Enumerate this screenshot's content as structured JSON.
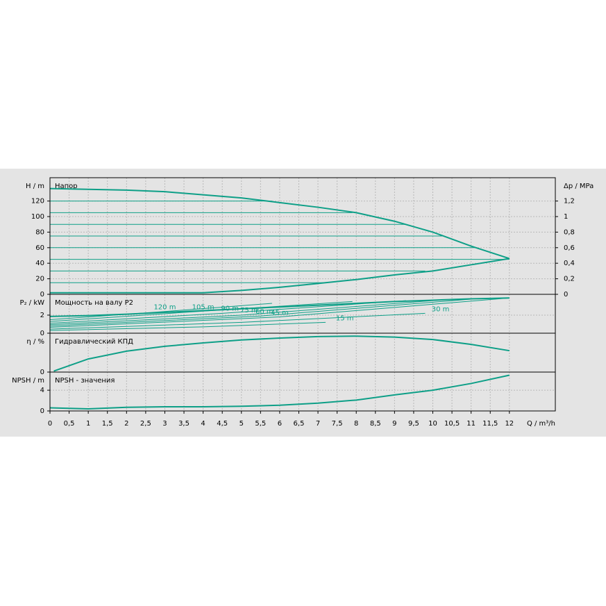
{
  "chart_data": [
    {
      "type": "line",
      "title": "Напор",
      "ylabel": "H / m",
      "y2label": "Δp / MPa",
      "ylim": [
        0,
        150
      ],
      "yticks": [
        0,
        20,
        40,
        60,
        80,
        100,
        120
      ],
      "y2lim": [
        0,
        1.5
      ],
      "y2ticks": [
        0,
        {
          "value": 0.2,
          "label": "0,2"
        },
        {
          "value": 0.4,
          "label": "0,4"
        },
        {
          "value": 0.6,
          "label": "0,6"
        },
        {
          "value": 0.8,
          "label": "0,8"
        },
        1,
        {
          "value": 1.2,
          "label": "1,2"
        }
      ],
      "xlim": [
        0,
        13.2
      ],
      "grid": true,
      "series": [
        {
          "color": "#0d9f87",
          "x": [
            0,
            1,
            2,
            3,
            4,
            5,
            6,
            7,
            8,
            9,
            10,
            11,
            12
          ],
          "values": [
            136,
            135,
            134,
            132,
            128,
            124,
            118,
            112,
            105,
            94,
            80,
            62,
            46
          ]
        },
        {
          "color": "#0d9f87",
          "x": [
            0,
            4,
            5,
            6,
            7,
            8,
            9,
            10,
            11,
            12
          ],
          "values": [
            2,
            2,
            5,
            9,
            14,
            19,
            25,
            30,
            38,
            46
          ]
        },
        {
          "color": "#0d9f87",
          "x": [
            0,
            7.2
          ],
          "values": [
            15,
            15
          ]
        },
        {
          "color": "#0d9f87",
          "x": [
            0,
            9.8
          ],
          "values": [
            30,
            30
          ]
        },
        {
          "color": "#0d9f87",
          "x": [
            0,
            12
          ],
          "values": [
            45,
            45
          ]
        },
        {
          "color": "#0d9f87",
          "x": [
            0,
            11.1
          ],
          "values": [
            60,
            60
          ]
        },
        {
          "color": "#0d9f87",
          "x": [
            0,
            10.3
          ],
          "values": [
            75,
            75
          ]
        },
        {
          "color": "#0d9f87",
          "x": [
            0,
            9.3
          ],
          "values": [
            90,
            90
          ]
        },
        {
          "color": "#0d9f87",
          "x": [
            0,
            7.9
          ],
          "values": [
            105,
            105
          ]
        },
        {
          "color": "#0d9f87",
          "x": [
            0,
            5.8
          ],
          "values": [
            120,
            120
          ]
        }
      ]
    },
    {
      "type": "line",
      "title": "Мощность на валу P2",
      "ylabel": "P₂ / kW",
      "ylim": [
        0,
        4.3
      ],
      "yticks": [
        0,
        2
      ],
      "xlim": [
        0,
        13.2
      ],
      "grid": true,
      "series": [
        {
          "color": "#0d9f87",
          "x": [
            0,
            1,
            2,
            3,
            4,
            5,
            6,
            7,
            8,
            9,
            10,
            11,
            12
          ],
          "values": [
            1.85,
            1.95,
            2.1,
            2.3,
            2.5,
            2.7,
            2.9,
            3.1,
            3.3,
            3.5,
            3.65,
            3.8,
            3.9
          ]
        },
        {
          "name": "120 m",
          "color": "#0d9f87",
          "x": [
            0,
            3,
            5.8
          ],
          "values": [
            1.5,
            2.4,
            3.3
          ]
        },
        {
          "name": "105 m",
          "color": "#0d9f87",
          "x": [
            0,
            3.5,
            7.9
          ],
          "values": [
            1.3,
            2.3,
            3.5
          ]
        },
        {
          "name": "90 m",
          "color": "#0d9f87",
          "x": [
            0,
            4.5,
            9.3
          ],
          "values": [
            1.1,
            2.2,
            3.6
          ]
        },
        {
          "name": "75 m",
          "color": "#0d9f87",
          "x": [
            0,
            5,
            10.3
          ],
          "values": [
            0.95,
            2.0,
            3.7
          ]
        },
        {
          "name": "60 m",
          "color": "#0d9f87",
          "x": [
            0,
            5.5,
            11.1
          ],
          "values": [
            0.8,
            1.9,
            3.8
          ]
        },
        {
          "name": "45 m",
          "color": "#0d9f87",
          "x": [
            0,
            6,
            12
          ],
          "values": [
            0.65,
            1.8,
            3.9
          ]
        },
        {
          "name": "30 m",
          "color": "#0d9f87",
          "x": [
            0,
            5,
            9.8
          ],
          "values": [
            0.45,
            1.2,
            2.2
          ]
        },
        {
          "name": "15 m",
          "color": "#0d9f87",
          "x": [
            0,
            4,
            7.2
          ],
          "values": [
            0.3,
            0.7,
            1.2
          ]
        }
      ]
    },
    {
      "type": "line",
      "title": "Гидравлический КПД",
      "ylabel": "η / %",
      "ylim": [
        0,
        80
      ],
      "yticks": [
        0
      ],
      "xlim": [
        0,
        13.2
      ],
      "grid": true,
      "series": [
        {
          "color": "#0d9f87",
          "x": [
            0.1,
            1,
            2,
            3,
            4,
            5,
            6,
            7,
            8,
            9,
            10,
            11,
            12
          ],
          "values": [
            2,
            27,
            43,
            53,
            60,
            66,
            70,
            73,
            74,
            72,
            67,
            57,
            44
          ]
        }
      ]
    },
    {
      "type": "line",
      "title": "NPSH - значения",
      "ylabel": "NPSH / m",
      "xlabel": "Q / m³/h",
      "ylim": [
        0,
        7.5
      ],
      "yticks": [
        0,
        4
      ],
      "xlim": [
        0,
        13.2
      ],
      "grid": true,
      "xticks": [
        0,
        {
          "value": 0.5,
          "label": "0,5"
        },
        1,
        {
          "value": 1.5,
          "label": "1,5"
        },
        2,
        {
          "value": 2.5,
          "label": "2,5"
        },
        3,
        {
          "value": 3.5,
          "label": "3,5"
        },
        4,
        {
          "value": 4.5,
          "label": "4,5"
        },
        5,
        {
          "value": 5.5,
          "label": "5,5"
        },
        6,
        {
          "value": 6.5,
          "label": "6,5"
        },
        7,
        {
          "value": 7.5,
          "label": "7,5"
        },
        8,
        {
          "value": 8.5,
          "label": "8,5"
        },
        9,
        {
          "value": 9.5,
          "label": "9,5"
        },
        10,
        {
          "value": 10.5,
          "label": "10,5"
        },
        11,
        {
          "value": 11.5,
          "label": "11,5"
        },
        12
      ],
      "series": [
        {
          "color": "#0d9f87",
          "x": [
            0,
            1,
            2,
            3,
            4,
            5,
            6,
            7,
            8,
            9,
            10,
            11,
            12
          ],
          "values": [
            0.6,
            0.4,
            0.7,
            0.8,
            0.8,
            0.9,
            1.1,
            1.5,
            2.1,
            3.1,
            4,
            5.3,
            6.9
          ]
        }
      ]
    }
  ]
}
